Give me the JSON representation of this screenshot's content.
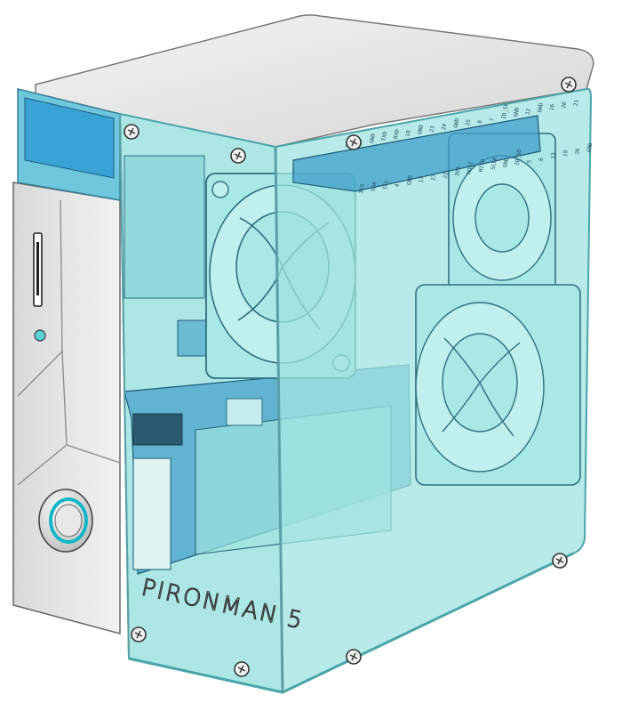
{
  "case": {
    "brand_label": "PIRONMAN 5"
  },
  "gpio": {
    "top_row": [
      "5V",
      "5V",
      "GND",
      "TXD",
      "RXD",
      "18",
      "GND",
      "23",
      "24",
      "GND",
      "25",
      "8",
      "7",
      "ID_SC",
      "GND",
      "12",
      "GND",
      "16",
      "20",
      "21"
    ],
    "bottom_row": [
      "3V3",
      "SDA",
      "SCL",
      "4",
      "GND",
      "17",
      "27",
      "22",
      "3V3",
      "MOSI",
      "MISO",
      "SCLK",
      "GND",
      "ID_SD",
      "5",
      "6",
      "13",
      "19",
      "26",
      "GND"
    ]
  },
  "colors": {
    "acrylic": "#9fe3e0",
    "acrylic_edge": "#5fbcc0",
    "pcb": "#3f9ec9",
    "aluminium": "#e6e6e6",
    "button_ring": "#13b6c8"
  },
  "icons": [
    "screw-icon",
    "power-button-icon",
    "sd-slot-icon",
    "led-indicator-icon",
    "fan-icon"
  ]
}
